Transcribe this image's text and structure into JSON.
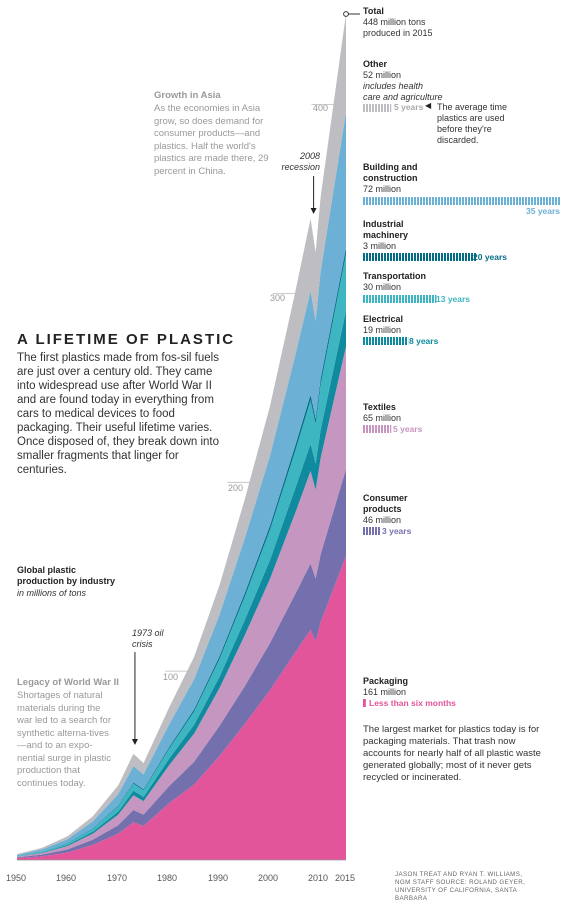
{
  "headline": {
    "title": "A LIFETIME OF PLASTIC",
    "body": "The first plastics made from fos-sil fuels are just over a century old. They came into widespread use after World War II and are found today in everything from cars to medical devices to food packaging. Their useful lifetime varies. Once disposed of, they break down into smaller fragments that linger for centuries."
  },
  "notes": {
    "asia_title": "Growth in Asia",
    "asia_body": "As the economies in Asia grow, so does demand for consumer products—and plastics. Half the world's plastics are made there, 29 percent in China.",
    "ww2_title": "Legacy of World War II",
    "ww2_body": "Shortages of natural materials during the war led to a search for synthetic alterna-tives—and to an expo-nential surge in plastic production that continues today.",
    "recession_2008": "2008 recession",
    "oil_crisis_1973": "1973 oil crisis",
    "lifetime_note": "The average time plastics are used before they're discarded.",
    "packaging_note": "The largest market for plastics today is for packaging materials. That trash now accounts for nearly half of all plastic waste generated globally; most of it never gets recycled or incinerated."
  },
  "chart_label": {
    "title": "Global plastic production by industry",
    "units": "in millions of tons"
  },
  "credit": "JASON TREAT AND RYAN T. WILLIAMS, NGM STAFF SOURCE: ROLAND GEYER, UNIVERSITY OF CALIFORNIA, SANTA BARBARA",
  "colors": {
    "packaging": "#e2559a",
    "consumer_products": "#7470ad",
    "textiles": "#c596c0",
    "electrical": "#0f8a9e",
    "transportation": "#3db6c2",
    "industrial_machinery": "#066d86",
    "building_construction": "#6cb0d6",
    "other": "#bdbdc2"
  },
  "chart_data": {
    "type": "area",
    "stacked": true,
    "title": "Global plastic production by industry",
    "ylabel": "in millions of tons",
    "xlim": [
      1950,
      2015
    ],
    "ylim": [
      0,
      448
    ],
    "x_ticks": [
      "1950",
      "1960",
      "1970",
      "1980",
      "1990",
      "2000",
      "2010",
      "2015"
    ],
    "y_ticks": [
      "100",
      "200",
      "300",
      "400"
    ],
    "total": {
      "label": "Total",
      "value": "448 million tons",
      "note": "produced in 2015"
    },
    "x": [
      1950,
      1955,
      1960,
      1965,
      1970,
      1973,
      1975,
      1980,
      1985,
      1990,
      1995,
      2000,
      2005,
      2008,
      2009,
      2010,
      2015
    ],
    "series": [
      {
        "name": "Packaging",
        "amount": "161 million",
        "lifetime": "Less than six months",
        "lifetime_years": 0.5,
        "values": [
          1,
          2,
          4,
          8,
          14,
          20,
          18,
          30,
          40,
          55,
          72,
          90,
          110,
          122,
          116,
          126,
          161
        ]
      },
      {
        "name": "Consumer products",
        "amount": "46 million",
        "lifetime": "3 years",
        "lifetime_years": 3,
        "values": [
          0.4,
          0.9,
          1.6,
          2.8,
          4.5,
          6.5,
          6,
          9,
          12,
          16,
          20,
          25,
          31,
          35,
          33,
          36,
          46
        ]
      },
      {
        "name": "Textiles",
        "amount": "65 million",
        "lifetime": "5 years",
        "lifetime_years": 5,
        "values": [
          0.4,
          0.8,
          1.8,
          3.2,
          5.5,
          7.8,
          7.2,
          11,
          15,
          20,
          27,
          34,
          43,
          49,
          47,
          51,
          65
        ]
      },
      {
        "name": "Electrical",
        "amount": "19 million",
        "lifetime": "8 years",
        "lifetime_years": 8,
        "values": [
          0.15,
          0.3,
          0.6,
          1,
          1.7,
          2.4,
          2.2,
          3.4,
          4.6,
          6,
          8,
          10,
          13,
          14.5,
          14,
          15,
          19
        ]
      },
      {
        "name": "Transportation",
        "amount": "30 million",
        "lifetime": "13 years",
        "lifetime_years": 13,
        "values": [
          0.2,
          0.5,
          0.9,
          1.6,
          2.7,
          3.8,
          3.5,
          5.3,
          7.1,
          9.4,
          12.5,
          16,
          20,
          23,
          21,
          24,
          30
        ]
      },
      {
        "name": "Industrial machinery",
        "amount": "3 million",
        "lifetime": "20 years",
        "lifetime_years": 20,
        "values": [
          0.05,
          0.1,
          0.15,
          0.3,
          0.4,
          0.6,
          0.5,
          0.8,
          1.1,
          1.4,
          1.8,
          2.2,
          2.6,
          2.9,
          2.7,
          2.9,
          3
        ]
      },
      {
        "name": "Building and construction",
        "amount": "72 million",
        "lifetime": "35 years",
        "lifetime_years": 35,
        "values": [
          0.5,
          1.1,
          2,
          3.6,
          6.1,
          8.7,
          8,
          12,
          16,
          22,
          29,
          37,
          48,
          55,
          52,
          57,
          72
        ]
      },
      {
        "name": "Other",
        "amount": "52 million",
        "note": "includes health care and agriculture",
        "lifetime": "5 years",
        "lifetime_years": 5,
        "values": [
          0.4,
          0.8,
          1.5,
          2.7,
          4.6,
          6.4,
          5.9,
          8.9,
          11.8,
          15.6,
          20.7,
          26.3,
          33.5,
          38.2,
          36.1,
          39.5,
          52
        ]
      }
    ]
  }
}
